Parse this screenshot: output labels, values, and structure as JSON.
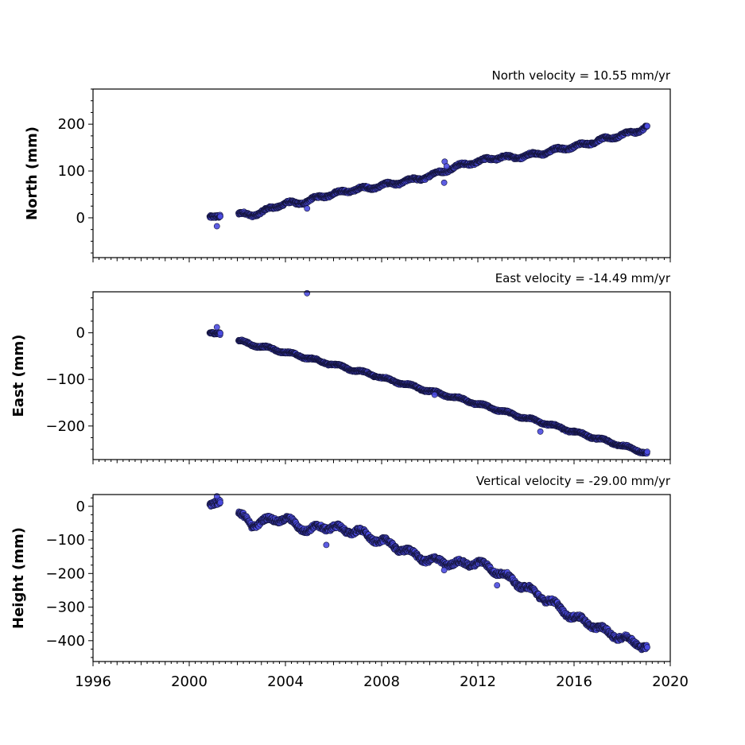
{
  "chart_data": [
    {
      "type": "scatter",
      "title": "North velocity = 10.55 mm/yr",
      "ylabel": "North (mm)",
      "xlim": [
        1996,
        2020
      ],
      "ylim": [
        -85,
        275
      ],
      "yticks": [
        0,
        100,
        200
      ],
      "yticklabels": [
        "0",
        "100",
        "200"
      ],
      "trend": {
        "t0": 2001.0,
        "v0": 0,
        "rate": 10.55,
        "wobble": 4
      },
      "knots": [
        [
          2000.85,
          2
        ],
        [
          2001.3,
          3
        ],
        [
          2002.1,
          8
        ],
        [
          2002.6,
          6
        ],
        [
          2003.0,
          12
        ],
        [
          2003.5,
          22
        ],
        [
          2004.0,
          32
        ],
        [
          2004.5,
          30
        ],
        [
          2005.0,
          38
        ],
        [
          2005.5,
          45
        ],
        [
          2006.0,
          52
        ],
        [
          2006.5,
          56
        ],
        [
          2007.0,
          62
        ],
        [
          2007.5,
          63
        ],
        [
          2008.0,
          70
        ],
        [
          2008.5,
          72
        ],
        [
          2009.0,
          79
        ],
        [
          2009.5,
          82
        ],
        [
          2010.0,
          90
        ],
        [
          2010.6,
          100
        ],
        [
          2011.0,
          108
        ],
        [
          2011.5,
          115
        ],
        [
          2012.0,
          120
        ],
        [
          2012.5,
          126
        ],
        [
          2013.0,
          130
        ],
        [
          2013.5,
          128
        ],
        [
          2014.0,
          133
        ],
        [
          2014.5,
          136
        ],
        [
          2015.0,
          142
        ],
        [
          2015.5,
          148
        ],
        [
          2016.0,
          152
        ],
        [
          2016.5,
          158
        ],
        [
          2017.0,
          165
        ],
        [
          2017.5,
          170
        ],
        [
          2018.0,
          178
        ],
        [
          2018.5,
          182
        ],
        [
          2019.0,
          195
        ]
      ],
      "outliers": [
        [
          2001.15,
          -18
        ],
        [
          2004.9,
          20
        ],
        [
          2010.6,
          75
        ],
        [
          2010.62,
          120
        ],
        [
          2010.7,
          110
        ]
      ]
    },
    {
      "type": "scatter",
      "title": "East velocity = -14.49 mm/yr",
      "ylabel": "East (mm)",
      "xlim": [
        1996,
        2020
      ],
      "ylim": [
        -272,
        88
      ],
      "yticks": [
        -200,
        -100,
        0
      ],
      "yticklabels": [
        "−200",
        "−100",
        "0"
      ],
      "trend": {
        "t0": 2001.0,
        "v0": 0,
        "rate": -14.49,
        "wobble": 3
      },
      "knots": [
        [
          2000.85,
          0
        ],
        [
          2001.3,
          -2
        ],
        [
          2002.1,
          -18
        ],
        [
          2002.6,
          -25
        ],
        [
          2003.0,
          -30
        ],
        [
          2003.5,
          -35
        ],
        [
          2004.0,
          -42
        ],
        [
          2004.5,
          -48
        ],
        [
          2005.0,
          -55
        ],
        [
          2005.5,
          -62
        ],
        [
          2006.0,
          -68
        ],
        [
          2006.5,
          -75
        ],
        [
          2007.0,
          -82
        ],
        [
          2007.5,
          -88
        ],
        [
          2008.0,
          -96
        ],
        [
          2008.5,
          -104
        ],
        [
          2009.0,
          -110
        ],
        [
          2009.5,
          -118
        ],
        [
          2010.0,
          -125
        ],
        [
          2010.5,
          -132
        ],
        [
          2011.0,
          -138
        ],
        [
          2011.5,
          -145
        ],
        [
          2012.0,
          -153
        ],
        [
          2012.5,
          -160
        ],
        [
          2013.0,
          -168
        ],
        [
          2013.5,
          -176
        ],
        [
          2014.0,
          -183
        ],
        [
          2014.5,
          -190
        ],
        [
          2015.0,
          -197
        ],
        [
          2015.5,
          -205
        ],
        [
          2016.0,
          -212
        ],
        [
          2016.5,
          -220
        ],
        [
          2017.0,
          -227
        ],
        [
          2017.5,
          -235
        ],
        [
          2018.0,
          -242
        ],
        [
          2018.5,
          -250
        ],
        [
          2019.0,
          -258
        ]
      ],
      "outliers": [
        [
          2004.9,
          85
        ],
        [
          2001.15,
          12
        ],
        [
          2014.6,
          -212
        ],
        [
          2010.2,
          -133
        ]
      ]
    },
    {
      "type": "scatter",
      "title": "Vertical velocity = -29.00 mm/yr",
      "ylabel": "Height (mm)",
      "xlabel": "",
      "xlim": [
        1996,
        2020
      ],
      "xticks": [
        1996,
        2000,
        2004,
        2008,
        2012,
        2016,
        2020
      ],
      "xticklabels": [
        "1996",
        "2000",
        "2004",
        "2008",
        "2012",
        "2016",
        "2020"
      ],
      "ylim": [
        -462,
        35
      ],
      "yticks": [
        -400,
        -300,
        -200,
        -100,
        0
      ],
      "yticklabels": [
        "−400",
        "−300",
        "−200",
        "−100",
        "0"
      ],
      "trend": {
        "t0": 2001.0,
        "v0": 0,
        "rate": -29.0,
        "wobble": 10
      },
      "knots": [
        [
          2000.85,
          5
        ],
        [
          2001.3,
          15
        ],
        [
          2002.1,
          -25
        ],
        [
          2002.6,
          -55
        ],
        [
          2003.0,
          -45
        ],
        [
          2003.5,
          -40
        ],
        [
          2004.0,
          -35
        ],
        [
          2004.5,
          -60
        ],
        [
          2005.0,
          -70
        ],
        [
          2005.5,
          -62
        ],
        [
          2006.0,
          -60
        ],
        [
          2006.5,
          -75
        ],
        [
          2007.0,
          -70
        ],
        [
          2007.5,
          -95
        ],
        [
          2008.0,
          -100
        ],
        [
          2008.5,
          -120
        ],
        [
          2009.0,
          -130
        ],
        [
          2009.5,
          -150
        ],
        [
          2010.0,
          -160
        ],
        [
          2010.5,
          -165
        ],
        [
          2011.0,
          -170
        ],
        [
          2011.5,
          -172
        ],
        [
          2012.0,
          -165
        ],
        [
          2012.5,
          -185
        ],
        [
          2013.0,
          -200
        ],
        [
          2013.5,
          -225
        ],
        [
          2014.0,
          -240
        ],
        [
          2014.5,
          -265
        ],
        [
          2015.0,
          -280
        ],
        [
          2015.5,
          -310
        ],
        [
          2016.0,
          -330
        ],
        [
          2016.5,
          -345
        ],
        [
          2017.0,
          -360
        ],
        [
          2017.5,
          -380
        ],
        [
          2018.0,
          -390
        ],
        [
          2018.5,
          -405
        ],
        [
          2019.0,
          -418
        ]
      ],
      "outliers": [
        [
          2005.7,
          -115
        ],
        [
          2012.8,
          -235
        ],
        [
          2001.15,
          30
        ],
        [
          2010.6,
          -190
        ]
      ]
    }
  ],
  "colors": {
    "marker_fill": "#4b4be0",
    "marker_edge": "#14143c",
    "axis": "#000000",
    "text": "#000000"
  }
}
